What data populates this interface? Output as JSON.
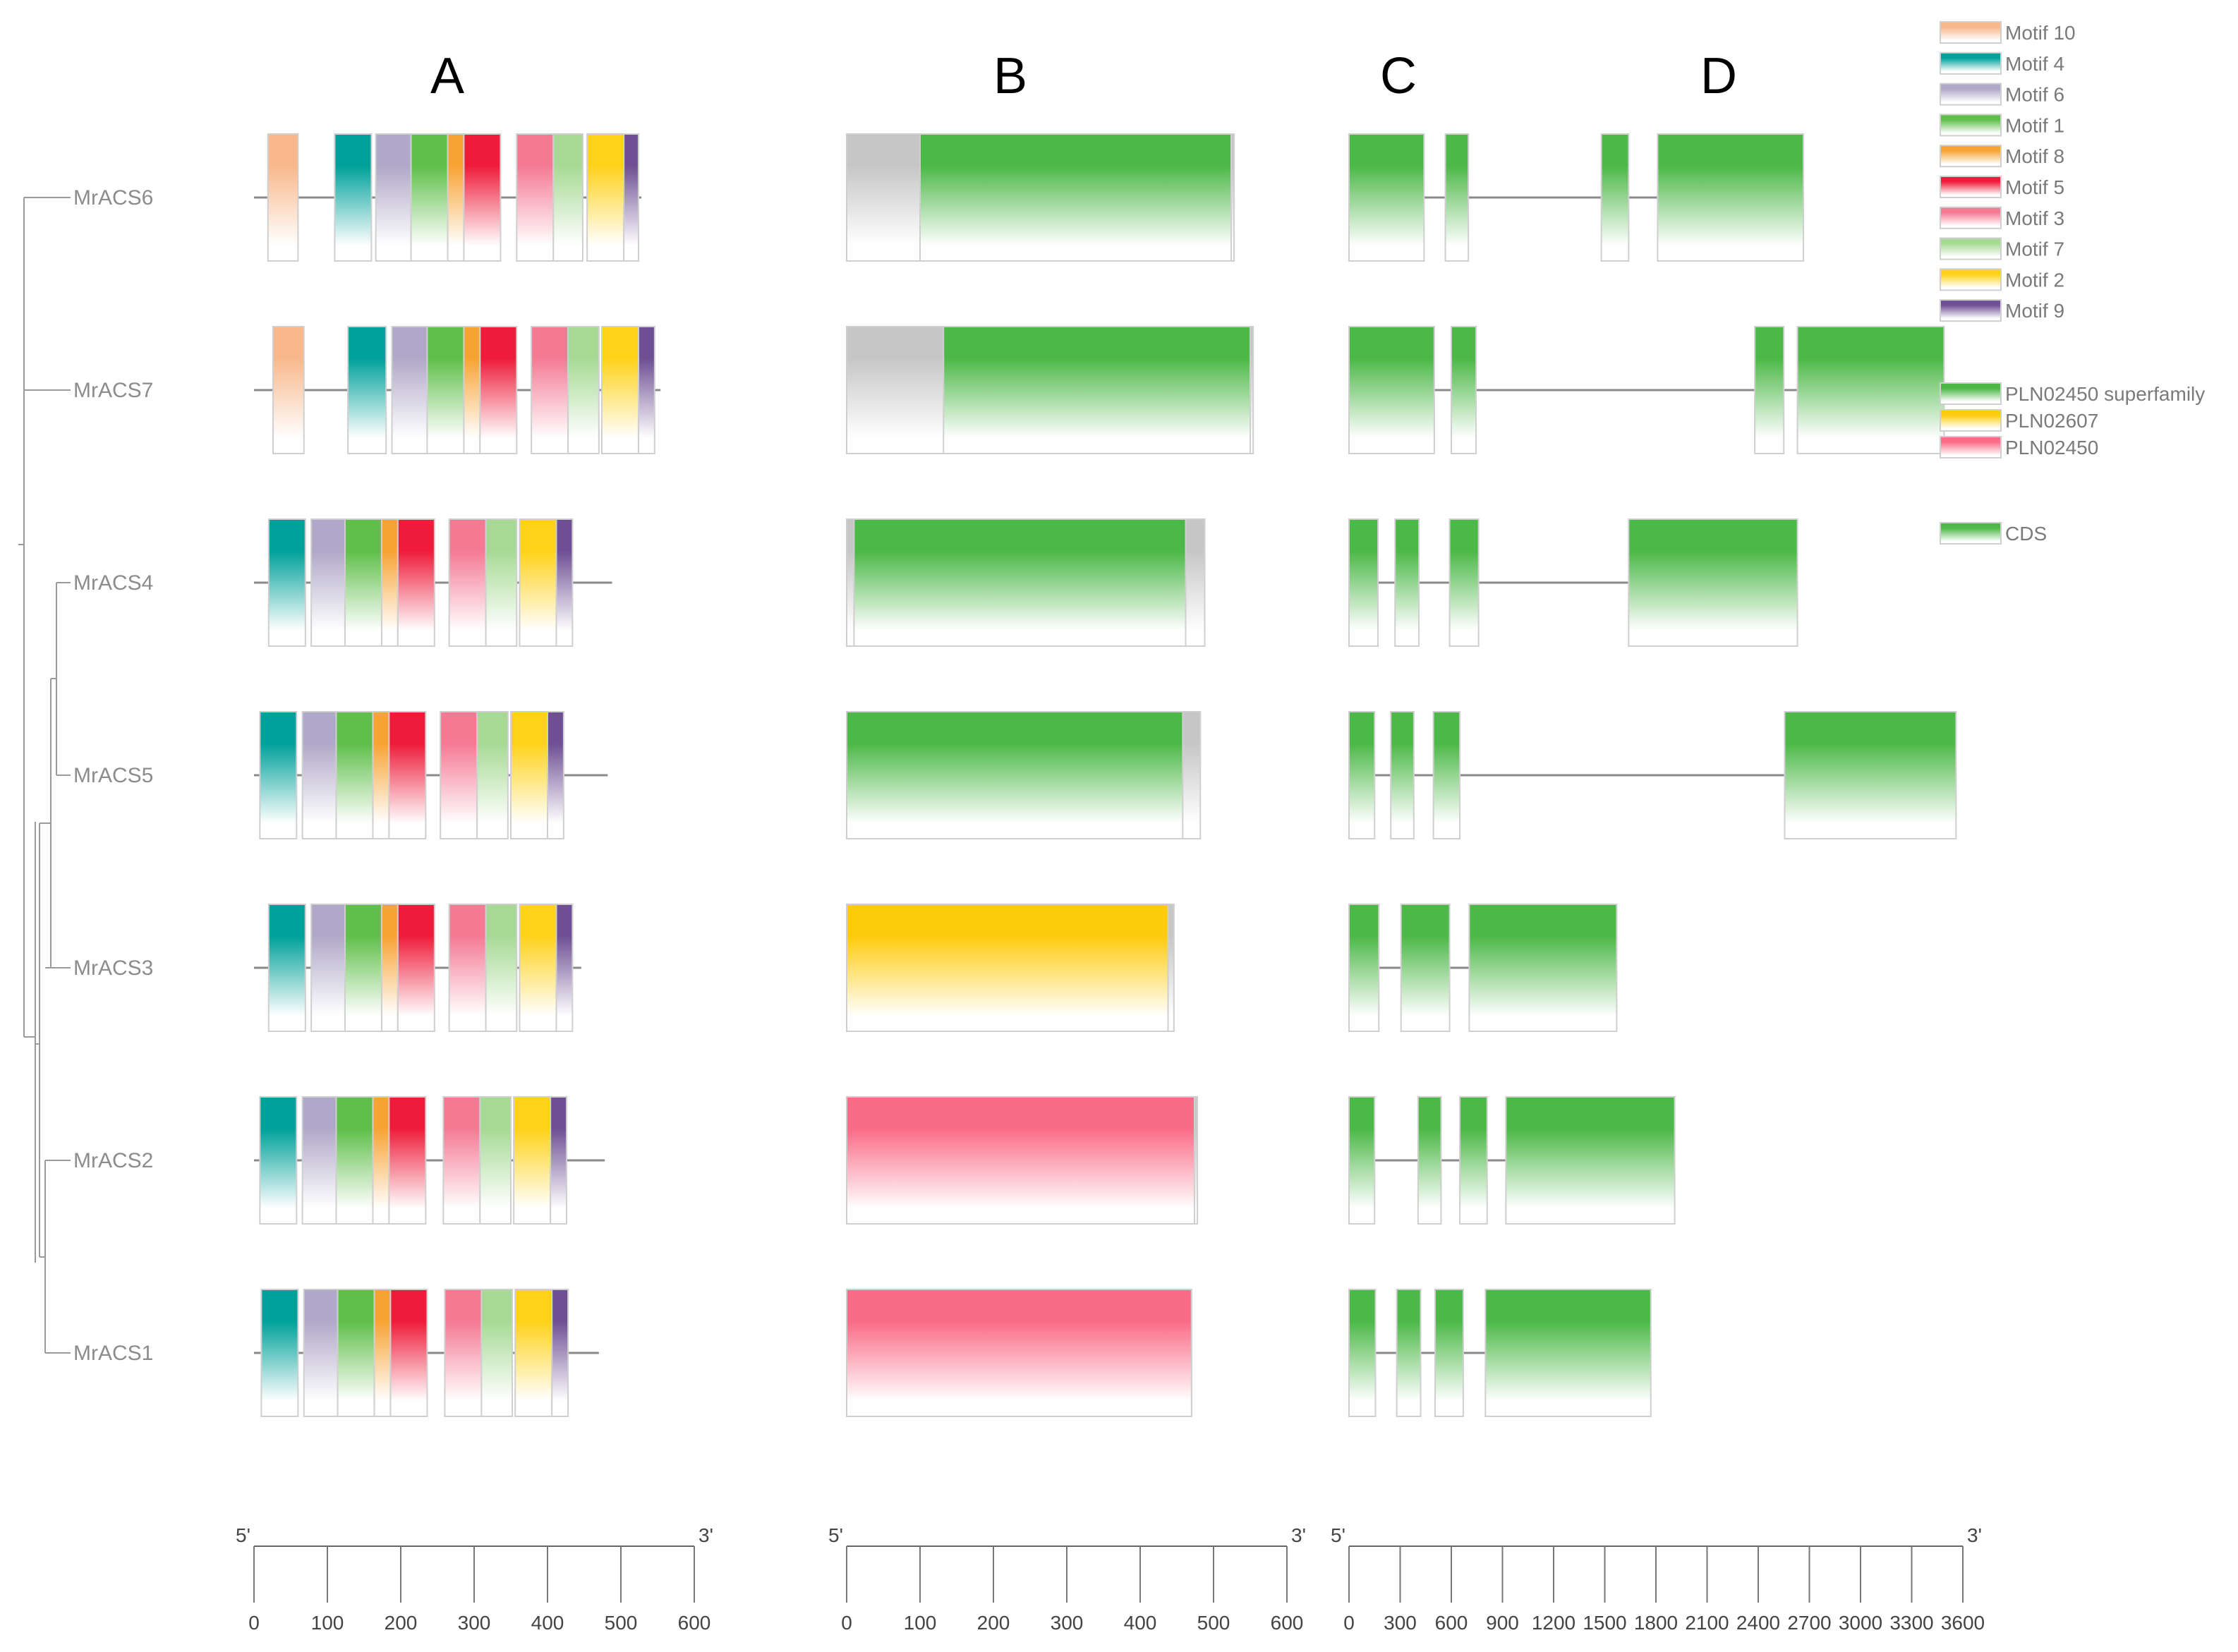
{
  "panel_labels": [
    "A",
    "B",
    "C",
    "D"
  ],
  "genes": [
    "MrACS6",
    "MrACS7",
    "MrACS4",
    "MrACS5",
    "MrACS3",
    "MrACS2",
    "MrACS1"
  ],
  "colors": {
    "Motif 10": "#f8b88b",
    "Motif 4": "#00a19a",
    "Motif 6": "#b0a8c8",
    "Motif 1": "#5fbf4a",
    "Motif 8": "#f7a334",
    "Motif 5": "#ee1c3a",
    "Motif 3": "#f47a94",
    "Motif 7": "#a6da94",
    "Motif 2": "#ffd21a",
    "Motif 9": "#6e4f94",
    "PLN02450 superfamily": "#4cb847",
    "PLN02607": "#ffcb0d",
    "PLN02450": "#fa6b87",
    "CDS": "#4cb847",
    "gray": "#c6c6c6"
  },
  "legend": {
    "motifs": [
      "Motif 10",
      "Motif 4",
      "Motif 6",
      "Motif 1",
      "Motif 8",
      "Motif 5",
      "Motif 3",
      "Motif 7",
      "Motif 2",
      "Motif 9"
    ],
    "domains": [
      "PLN02450 superfamily",
      "PLN02607",
      "PLN02450"
    ],
    "gene_features": [
      "CDS"
    ]
  },
  "chart_data": [
    {
      "type": "motif_map",
      "panel": "A",
      "axis": {
        "min": 0,
        "max": 600,
        "ticks": [
          0,
          100,
          200,
          300,
          400,
          500,
          600
        ],
        "start_label": "5'",
        "end_label": "3'"
      },
      "genes": [
        {
          "name": "MrACS6",
          "length": 528,
          "motifs": [
            {
              "motif": "Motif 10",
              "start": 19,
              "end": 60
            },
            {
              "motif": "Motif 4",
              "start": 110,
              "end": 160
            },
            {
              "motif": "Motif 6",
              "start": 166,
              "end": 214
            },
            {
              "motif": "Motif 1",
              "start": 214,
              "end": 264
            },
            {
              "motif": "Motif 8",
              "start": 264,
              "end": 286
            },
            {
              "motif": "Motif 5",
              "start": 286,
              "end": 336
            },
            {
              "motif": "Motif 3",
              "start": 358,
              "end": 408
            },
            {
              "motif": "Motif 7",
              "start": 408,
              "end": 448
            },
            {
              "motif": "Motif 2",
              "start": 454,
              "end": 504
            },
            {
              "motif": "Motif 9",
              "start": 504,
              "end": 524
            }
          ]
        },
        {
          "name": "MrACS7",
          "length": 554,
          "motifs": [
            {
              "motif": "Motif 10",
              "start": 26,
              "end": 68
            },
            {
              "motif": "Motif 4",
              "start": 128,
              "end": 180
            },
            {
              "motif": "Motif 6",
              "start": 188,
              "end": 236
            },
            {
              "motif": "Motif 1",
              "start": 236,
              "end": 286
            },
            {
              "motif": "Motif 8",
              "start": 286,
              "end": 308
            },
            {
              "motif": "Motif 5",
              "start": 308,
              "end": 358
            },
            {
              "motif": "Motif 3",
              "start": 378,
              "end": 428
            },
            {
              "motif": "Motif 7",
              "start": 428,
              "end": 470
            },
            {
              "motif": "Motif 2",
              "start": 474,
              "end": 524
            },
            {
              "motif": "Motif 9",
              "start": 524,
              "end": 546
            }
          ]
        },
        {
          "name": "MrACS4",
          "length": 488,
          "motifs": [
            {
              "motif": "Motif 4",
              "start": 20,
              "end": 70
            },
            {
              "motif": "Motif 6",
              "start": 78,
              "end": 124
            },
            {
              "motif": "Motif 1",
              "start": 124,
              "end": 174
            },
            {
              "motif": "Motif 8",
              "start": 174,
              "end": 196
            },
            {
              "motif": "Motif 5",
              "start": 196,
              "end": 246
            },
            {
              "motif": "Motif 3",
              "start": 266,
              "end": 316
            },
            {
              "motif": "Motif 7",
              "start": 316,
              "end": 358
            },
            {
              "motif": "Motif 2",
              "start": 362,
              "end": 412
            },
            {
              "motif": "Motif 9",
              "start": 412,
              "end": 434
            }
          ]
        },
        {
          "name": "MrACS5",
          "length": 482,
          "motifs": [
            {
              "motif": "Motif 4",
              "start": 8,
              "end": 58
            },
            {
              "motif": "Motif 6",
              "start": 66,
              "end": 112
            },
            {
              "motif": "Motif 1",
              "start": 112,
              "end": 162
            },
            {
              "motif": "Motif 8",
              "start": 162,
              "end": 184
            },
            {
              "motif": "Motif 5",
              "start": 184,
              "end": 234
            },
            {
              "motif": "Motif 3",
              "start": 254,
              "end": 304
            },
            {
              "motif": "Motif 7",
              "start": 304,
              "end": 346
            },
            {
              "motif": "Motif 2",
              "start": 350,
              "end": 400
            },
            {
              "motif": "Motif 9",
              "start": 400,
              "end": 422
            }
          ]
        },
        {
          "name": "MrACS3",
          "length": 446,
          "motifs": [
            {
              "motif": "Motif 4",
              "start": 20,
              "end": 70
            },
            {
              "motif": "Motif 6",
              "start": 78,
              "end": 124
            },
            {
              "motif": "Motif 1",
              "start": 124,
              "end": 174
            },
            {
              "motif": "Motif 8",
              "start": 174,
              "end": 196
            },
            {
              "motif": "Motif 5",
              "start": 196,
              "end": 246
            },
            {
              "motif": "Motif 3",
              "start": 266,
              "end": 316
            },
            {
              "motif": "Motif 7",
              "start": 316,
              "end": 358
            },
            {
              "motif": "Motif 2",
              "start": 362,
              "end": 412
            },
            {
              "motif": "Motif 9",
              "start": 412,
              "end": 434
            }
          ]
        },
        {
          "name": "MrACS2",
          "length": 478,
          "motifs": [
            {
              "motif": "Motif 4",
              "start": 8,
              "end": 58
            },
            {
              "motif": "Motif 6",
              "start": 66,
              "end": 112
            },
            {
              "motif": "Motif 1",
              "start": 112,
              "end": 162
            },
            {
              "motif": "Motif 8",
              "start": 162,
              "end": 184
            },
            {
              "motif": "Motif 5",
              "start": 184,
              "end": 234
            },
            {
              "motif": "Motif 3",
              "start": 258,
              "end": 308
            },
            {
              "motif": "Motif 7",
              "start": 308,
              "end": 350
            },
            {
              "motif": "Motif 2",
              "start": 354,
              "end": 404
            },
            {
              "motif": "Motif 9",
              "start": 404,
              "end": 426
            }
          ]
        },
        {
          "name": "MrACS1",
          "length": 470,
          "motifs": [
            {
              "motif": "Motif 4",
              "start": 10,
              "end": 60
            },
            {
              "motif": "Motif 6",
              "start": 68,
              "end": 114
            },
            {
              "motif": "Motif 1",
              "start": 114,
              "end": 164
            },
            {
              "motif": "Motif 8",
              "start": 164,
              "end": 186
            },
            {
              "motif": "Motif 5",
              "start": 186,
              "end": 236
            },
            {
              "motif": "Motif 3",
              "start": 260,
              "end": 310
            },
            {
              "motif": "Motif 7",
              "start": 310,
              "end": 352
            },
            {
              "motif": "Motif 2",
              "start": 356,
              "end": 406
            },
            {
              "motif": "Motif 9",
              "start": 406,
              "end": 428
            }
          ]
        }
      ]
    },
    {
      "type": "domain_map",
      "panel": "B",
      "axis": {
        "min": 0,
        "max": 600,
        "ticks": [
          0,
          100,
          200,
          300,
          400,
          500,
          600
        ],
        "start_label": "5'",
        "end_label": "3'"
      },
      "genes": [
        {
          "name": "MrACS6",
          "length": 528,
          "domains": [
            {
              "domain": "PLN02450 superfamily",
              "start": 100,
              "end": 524
            }
          ]
        },
        {
          "name": "MrACS7",
          "length": 554,
          "domains": [
            {
              "domain": "PLN02450 superfamily",
              "start": 132,
              "end": 550
            }
          ]
        },
        {
          "name": "MrACS4",
          "length": 488,
          "domains": [
            {
              "domain": "PLN02450 superfamily",
              "start": 10,
              "end": 462
            }
          ]
        },
        {
          "name": "MrACS5",
          "length": 482,
          "domains": [
            {
              "domain": "PLN02450 superfamily",
              "start": 0,
              "end": 458
            }
          ]
        },
        {
          "name": "MrACS3",
          "length": 446,
          "domains": [
            {
              "domain": "PLN02607",
              "start": 0,
              "end": 438
            }
          ]
        },
        {
          "name": "MrACS2",
          "length": 478,
          "domains": [
            {
              "domain": "PLN02450",
              "start": 0,
              "end": 474
            }
          ]
        },
        {
          "name": "MrACS1",
          "length": 470,
          "domains": [
            {
              "domain": "PLN02450",
              "start": 0,
              "end": 470
            }
          ]
        }
      ]
    },
    {
      "type": "gene_structure",
      "panels": [
        "C",
        "D"
      ],
      "axis": {
        "min": 0,
        "max": 3600,
        "ticks": [
          0,
          300,
          600,
          900,
          1200,
          1500,
          1800,
          2100,
          2400,
          2700,
          3000,
          3300,
          3600
        ],
        "start_label": "5'",
        "end_label": "3'"
      },
      "genes": [
        {
          "name": "MrACS6",
          "length": 2665,
          "cds": [
            [
              0,
              440
            ],
            [
              565,
              700
            ],
            [
              1480,
              1640
            ],
            [
              1810,
              2665
            ]
          ]
        },
        {
          "name": "MrACS7",
          "length": 3490,
          "cds": [
            [
              0,
              500
            ],
            [
              600,
              745
            ],
            [
              2380,
              2550
            ],
            [
              2630,
              3490
            ]
          ]
        },
        {
          "name": "MrACS4",
          "length": 2630,
          "cds": [
            [
              0,
              170
            ],
            [
              270,
              410
            ],
            [
              590,
              760
            ],
            [
              1640,
              2630
            ]
          ]
        },
        {
          "name": "MrACS5",
          "length": 3560,
          "cds": [
            [
              0,
              150
            ],
            [
              245,
              380
            ],
            [
              495,
              650
            ],
            [
              2555,
              3560
            ]
          ]
        },
        {
          "name": "MrACS3",
          "length": 1570,
          "cds": [
            [
              0,
              175
            ],
            [
              305,
              590
            ],
            [
              705,
              1570
            ]
          ]
        },
        {
          "name": "MrACS2",
          "length": 1910,
          "cds": [
            [
              0,
              150
            ],
            [
              405,
              540
            ],
            [
              650,
              810
            ],
            [
              920,
              1910
            ]
          ]
        },
        {
          "name": "MrACS1",
          "length": 1770,
          "cds": [
            [
              0,
              155
            ],
            [
              280,
              420
            ],
            [
              505,
              670
            ],
            [
              800,
              1770
            ]
          ]
        }
      ]
    }
  ]
}
